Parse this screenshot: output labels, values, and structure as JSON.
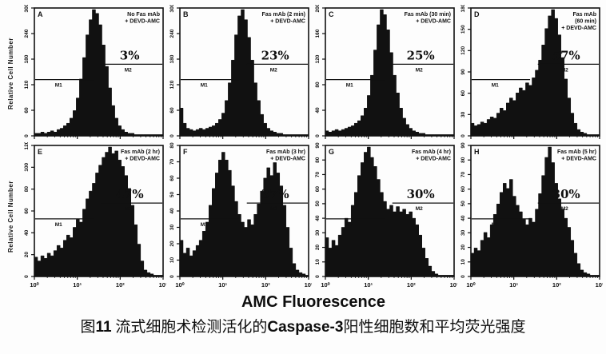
{
  "figure": {
    "xlabel": "AMC Fluorescence",
    "ylabel": "Relative Cell Number",
    "caption_segments": [
      {
        "t": "图",
        "b": 0
      },
      {
        "t": "11",
        "b": 1
      },
      {
        "t": " 流式细胞术检测活化的",
        "b": 0
      },
      {
        "t": "Caspase-3",
        "b": 1
      },
      {
        "t": "阳性细胞数和平均荧光强度",
        "b": 0
      }
    ],
    "caption_text": "图11 流式细胞术检测活化的Caspase-3阳性细胞数和平均荧光强度"
  },
  "chart_data": {
    "type": "area",
    "subtype": "flow-cytometry-histograms",
    "xlabel": "AMC Fluorescence",
    "ylabel": "Relative Cell Number",
    "x_scale": "log10",
    "x_range": [
      1,
      1000
    ],
    "x_ticks": [
      "10⁰",
      "10¹",
      "10²",
      "10³"
    ],
    "grid": false,
    "fill_color": "#111111",
    "panels": [
      {
        "id": "A",
        "header": [
          "No Fas mAb",
          "+ DEVD-AMC"
        ],
        "percent": "3%",
        "percent_value": 3,
        "gate_labels": {
          "m1": "M1",
          "m2": "M2"
        },
        "y_ticks": [
          "0",
          "60",
          "120",
          "180",
          "240",
          "300"
        ],
        "ylim": [
          0,
          300
        ],
        "profile": [
          0.02,
          0.02,
          0.03,
          0.02,
          0.03,
          0.04,
          0.03,
          0.05,
          0.06,
          0.08,
          0.1,
          0.14,
          0.2,
          0.3,
          0.45,
          0.62,
          0.8,
          0.92,
          1.0,
          0.97,
          0.88,
          0.72,
          0.55,
          0.38,
          0.24,
          0.14,
          0.08,
          0.05,
          0.03,
          0.02,
          0.02,
          0.01,
          0.01,
          0.01,
          0.01,
          0.01,
          0.01,
          0.01,
          0.01,
          0.01
        ]
      },
      {
        "id": "B",
        "header": [
          "Fas mAb (2 min)",
          "+ DEVD-AMC"
        ],
        "percent": "23%",
        "percent_value": 23,
        "gate_labels": {
          "m1": "M1",
          "m2": "M2"
        },
        "y_ticks": [
          "0",
          "60",
          "120",
          "180",
          "240",
          "300"
        ],
        "ylim": [
          0,
          300
        ],
        "profile": [
          0.22,
          0.1,
          0.06,
          0.05,
          0.04,
          0.05,
          0.06,
          0.05,
          0.06,
          0.07,
          0.08,
          0.1,
          0.13,
          0.18,
          0.28,
          0.42,
          0.6,
          0.8,
          0.95,
          1.0,
          0.92,
          0.78,
          0.6,
          0.42,
          0.28,
          0.17,
          0.1,
          0.06,
          0.04,
          0.03,
          0.02,
          0.02,
          0.01,
          0.01,
          0.01,
          0.01,
          0.01,
          0.01,
          0.01,
          0.01
        ]
      },
      {
        "id": "C",
        "header": [
          "Fas mAb (30 min)",
          "+ DEVD-AMC"
        ],
        "percent": "25%",
        "percent_value": 25,
        "gate_labels": {
          "m1": "M1",
          "m2": "M2"
        },
        "y_ticks": [
          "0",
          "40",
          "80",
          "120",
          "160",
          "200"
        ],
        "ylim": [
          0,
          200
        ],
        "profile": [
          0.04,
          0.03,
          0.04,
          0.05,
          0.04,
          0.05,
          0.06,
          0.07,
          0.08,
          0.1,
          0.12,
          0.16,
          0.22,
          0.32,
          0.48,
          0.68,
          0.88,
          1.0,
          0.96,
          0.84,
          0.66,
          0.48,
          0.34,
          0.22,
          0.14,
          0.09,
          0.06,
          0.04,
          0.03,
          0.02,
          0.02,
          0.01,
          0.01,
          0.01,
          0.01,
          0.01,
          0.01,
          0.01,
          0.01,
          0.01
        ]
      },
      {
        "id": "D",
        "header": [
          "Fas mAb",
          "(60 min)",
          "+ DEVD-AMC"
        ],
        "percent": "57%",
        "percent_value": 57,
        "gate_labels": {
          "m1": "M1",
          "m2": "M2"
        },
        "y_ticks": [
          "0",
          "30",
          "60",
          "90",
          "120",
          "150",
          "180"
        ],
        "ylim": [
          0,
          180
        ],
        "profile": [
          0.1,
          0.08,
          0.09,
          0.11,
          0.1,
          0.13,
          0.15,
          0.14,
          0.18,
          0.22,
          0.2,
          0.26,
          0.3,
          0.28,
          0.34,
          0.38,
          0.36,
          0.42,
          0.4,
          0.46,
          0.52,
          0.6,
          0.72,
          0.85,
          0.95,
          1.0,
          0.93,
          0.8,
          0.62,
          0.45,
          0.3,
          0.18,
          0.1,
          0.05,
          0.03,
          0.02,
          0.01,
          0.01,
          0.01,
          0.01
        ]
      },
      {
        "id": "E",
        "header": [
          "Fas mAb (2 hr)",
          "+ DEVD-AMC"
        ],
        "percent": "47%",
        "percent_value": 47,
        "gate_labels": {
          "m1": "M1",
          "m2": "M2"
        },
        "y_ticks": [
          "0",
          "20",
          "40",
          "60",
          "80",
          "100",
          "120"
        ],
        "ylim": [
          0,
          120
        ],
        "profile": [
          0.15,
          0.12,
          0.16,
          0.14,
          0.18,
          0.16,
          0.2,
          0.24,
          0.22,
          0.28,
          0.32,
          0.3,
          0.38,
          0.44,
          0.42,
          0.52,
          0.6,
          0.66,
          0.72,
          0.8,
          0.86,
          0.92,
          0.96,
          1.0,
          0.95,
          0.97,
          0.9,
          0.85,
          0.78,
          0.68,
          0.55,
          0.4,
          0.25,
          0.12,
          0.05,
          0.03,
          0.02,
          0.01,
          0.01,
          0.01
        ]
      },
      {
        "id": "F",
        "header": [
          "Fas mAb (3 hr)",
          "+ DEVD-AMC"
        ],
        "percent": "37%",
        "percent_value": 37,
        "gate_labels": {
          "m1": "M1",
          "m2": "M2"
        },
        "y_ticks": [
          "0",
          "10",
          "20",
          "30",
          "40",
          "50",
          "60",
          "70",
          "80"
        ],
        "ylim": [
          0,
          80
        ],
        "profile": [
          0.28,
          0.18,
          0.22,
          0.16,
          0.2,
          0.24,
          0.28,
          0.35,
          0.42,
          0.55,
          0.68,
          0.8,
          0.9,
          0.96,
          0.9,
          0.82,
          0.7,
          0.58,
          0.48,
          0.42,
          0.38,
          0.44,
          0.4,
          0.48,
          0.56,
          0.66,
          0.76,
          0.84,
          0.78,
          0.88,
          0.8,
          0.7,
          0.55,
          0.38,
          0.22,
          0.1,
          0.05,
          0.03,
          0.02,
          0.01
        ]
      },
      {
        "id": "G",
        "header": [
          "Fas mAb (4 hr)",
          "+ DEVD-AMC"
        ],
        "percent": "30%",
        "percent_value": 30,
        "gate_labels": {
          "m1": "M1",
          "m2": "M2"
        },
        "y_ticks": [
          "0",
          "10",
          "20",
          "30",
          "40",
          "50",
          "60",
          "70",
          "80",
          "90"
        ],
        "ylim": [
          0,
          90
        ],
        "profile": [
          0.3,
          0.22,
          0.28,
          0.24,
          0.32,
          0.38,
          0.45,
          0.42,
          0.55,
          0.65,
          0.78,
          0.88,
          0.96,
          1.0,
          0.92,
          0.85,
          0.75,
          0.65,
          0.58,
          0.52,
          0.55,
          0.5,
          0.54,
          0.5,
          0.52,
          0.48,
          0.5,
          0.45,
          0.4,
          0.32,
          0.22,
          0.14,
          0.08,
          0.04,
          0.02,
          0.01,
          0.01,
          0.01,
          0.01,
          0.01
        ]
      },
      {
        "id": "H",
        "header": [
          "Fas mAb (5 hr)",
          "+ DEVD-AMC"
        ],
        "percent": "30%",
        "percent_value": 30,
        "gate_labels": {
          "m1": "M1",
          "m2": "M2"
        },
        "y_ticks": [
          "0",
          "10",
          "20",
          "30",
          "40",
          "50",
          "60",
          "70",
          "80",
          "90"
        ],
        "ylim": [
          0,
          90
        ],
        "profile": [
          0.18,
          0.22,
          0.2,
          0.28,
          0.34,
          0.3,
          0.4,
          0.48,
          0.56,
          0.65,
          0.72,
          0.68,
          0.75,
          0.62,
          0.55,
          0.5,
          0.44,
          0.4,
          0.45,
          0.42,
          0.52,
          0.64,
          0.78,
          0.92,
          1.0,
          0.88,
          0.72,
          0.6,
          0.52,
          0.45,
          0.38,
          0.28,
          0.18,
          0.1,
          0.05,
          0.03,
          0.02,
          0.01,
          0.01,
          0.01
        ]
      }
    ]
  }
}
